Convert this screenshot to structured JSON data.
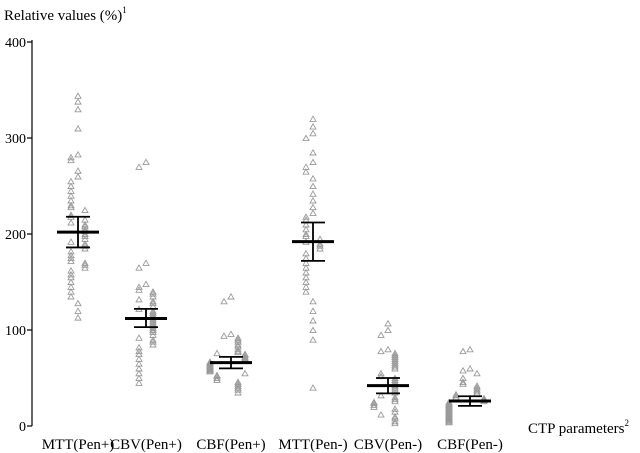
{
  "chart_data": {
    "type": "scatter",
    "ylabel": "Relative values (%)",
    "ylabel_sup": "1",
    "xlabel": "CTP parameters",
    "xlabel_sup": "2",
    "ylim": [
      0,
      400
    ],
    "yticks": [
      "0",
      "100",
      "200",
      "300",
      "400"
    ],
    "categories": [
      "MTT(Pen+)",
      "CBV(Pen+)",
      "CBF(Pen+)",
      "MTT(Pen-)",
      "CBV(Pen-)",
      "CBF(Pen-)"
    ],
    "series": [
      {
        "category": "MTT(Pen+)",
        "mean": 202,
        "err_low": 186,
        "err_high": 218,
        "values": [
          344,
          338,
          330,
          310,
          283,
          280,
          277,
          266,
          260,
          255,
          250,
          245,
          240,
          235,
          230,
          228,
          225,
          220,
          218,
          215,
          212,
          210,
          208,
          205,
          203,
          200,
          198,
          195,
          192,
          190,
          188,
          185,
          182,
          178,
          175,
          172,
          170,
          168,
          165,
          162,
          158,
          155,
          150,
          145,
          140,
          135,
          128,
          120,
          113
        ]
      },
      {
        "category": "CBV(Pen+)",
        "mean": 112,
        "err_low": 103,
        "err_high": 122,
        "values": [
          275,
          270,
          170,
          165,
          148,
          145,
          142,
          140,
          138,
          135,
          132,
          130,
          128,
          125,
          122,
          120,
          118,
          116,
          114,
          112,
          110,
          108,
          106,
          104,
          102,
          100,
          98,
          95,
          92,
          90,
          88,
          85,
          82,
          78,
          75,
          70,
          65,
          60,
          55,
          50,
          45
        ]
      },
      {
        "category": "CBF(Pen+)",
        "mean": 66,
        "err_low": 60,
        "err_high": 72,
        "values": [
          135,
          130,
          96,
          94,
          92,
          90,
          88,
          85,
          83,
          80,
          78,
          77,
          76,
          75,
          74,
          72,
          71,
          70,
          69,
          68,
          67,
          66,
          65,
          64,
          63,
          62,
          61,
          60,
          59,
          58,
          57,
          55,
          53,
          52,
          50,
          48,
          46,
          44,
          42,
          40,
          38,
          35
        ]
      },
      {
        "category": "MTT(Pen-)",
        "mean": 192,
        "err_low": 172,
        "err_high": 212,
        "values": [
          320,
          312,
          305,
          300,
          285,
          275,
          270,
          265,
          258,
          250,
          242,
          235,
          228,
          222,
          218,
          215,
          210,
          205,
          200,
          198,
          195,
          192,
          190,
          188,
          185,
          180,
          175,
          170,
          165,
          160,
          155,
          150,
          145,
          140,
          130,
          120,
          110,
          100,
          90,
          40
        ]
      },
      {
        "category": "CBV(Pen-)",
        "mean": 42,
        "err_low": 34,
        "err_high": 50,
        "values": [
          107,
          100,
          95,
          80,
          78,
          76,
          74,
          72,
          70,
          68,
          66,
          64,
          62,
          60,
          55,
          52,
          50,
          48,
          46,
          44,
          42,
          40,
          38,
          35,
          32,
          30,
          28,
          26,
          25,
          24,
          22,
          20,
          18,
          15,
          12,
          10,
          8,
          5,
          3
        ]
      },
      {
        "category": "CBF(Pen-)",
        "mean": 26,
        "err_low": 21,
        "err_high": 31,
        "values": [
          80,
          78,
          60,
          58,
          55,
          50,
          46,
          44,
          42,
          40,
          38,
          36,
          34,
          33,
          32,
          30,
          29,
          28,
          27,
          26,
          25,
          24,
          23,
          22,
          21,
          20,
          19,
          18,
          17,
          16,
          15,
          14,
          13,
          12,
          11,
          10,
          9,
          8,
          7,
          6,
          5,
          4
        ]
      }
    ]
  }
}
